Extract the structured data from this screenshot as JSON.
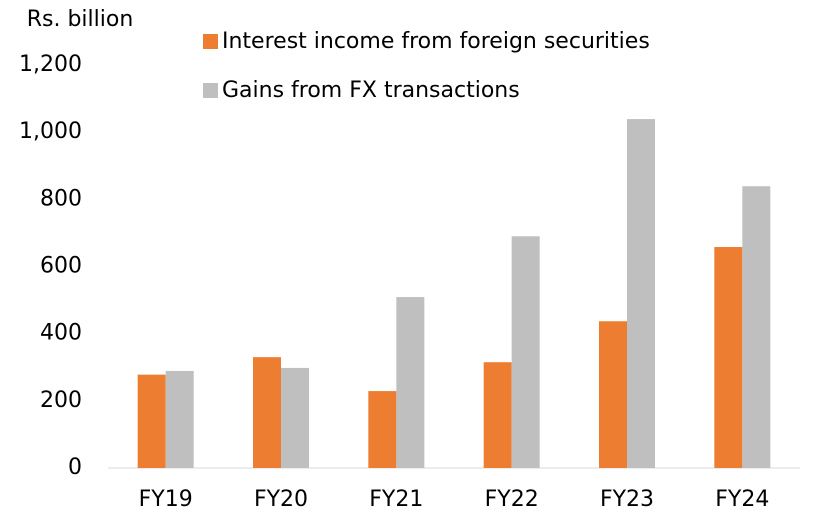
{
  "chart_data": {
    "type": "bar",
    "y_label": "Rs. billion",
    "categories": [
      "FY19",
      "FY20",
      "FY21",
      "FY22",
      "FY23",
      "FY24"
    ],
    "series": [
      {
        "name": "Interest income from foreign securities",
        "color": "#ed7d31",
        "values": [
          278,
          330,
          229,
          315,
          437,
          658
        ]
      },
      {
        "name": "Gains from FX transactions",
        "color": "#bfbfbf",
        "values": [
          289,
          298,
          509,
          690,
          1039,
          839
        ]
      }
    ],
    "ylim": [
      0,
      1200
    ],
    "yticks": [
      0,
      200,
      400,
      600,
      800,
      {
        "value": 1000,
        "label": "1,000"
      },
      {
        "value": 1200,
        "label": "1,200"
      }
    ],
    "grid": false,
    "legend": "top"
  }
}
